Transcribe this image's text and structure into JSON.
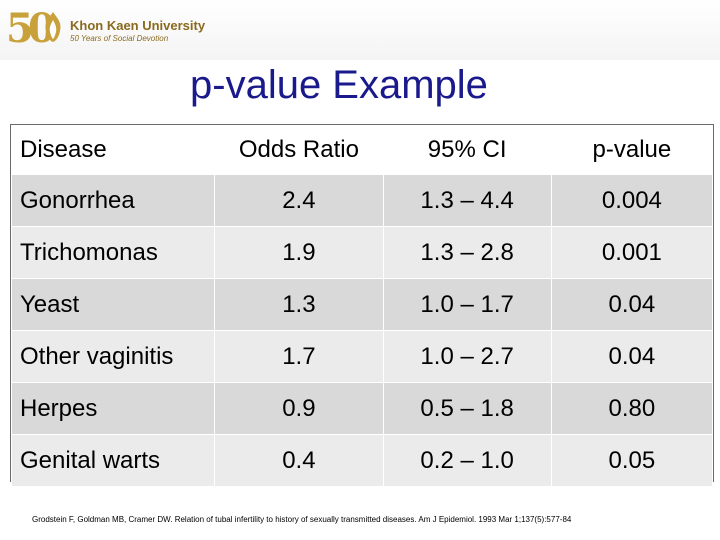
{
  "header": {
    "logo_fifty": "50",
    "logo_name": "Khon Kaen University",
    "logo_tagline": "50 Years of Social Devotion",
    "accent_color": "#c9a13b"
  },
  "slide": {
    "title": "p-value Example",
    "title_color": "#1a1a8c"
  },
  "table": {
    "headers": [
      "Disease",
      "Odds Ratio",
      "95% CI",
      "p-value"
    ],
    "rows": [
      [
        "Gonorrhea",
        "2.4",
        "1.3 – 4.4",
        "0.004"
      ],
      [
        "Trichomonas",
        "1.9",
        "1.3 – 2.8",
        "0.001"
      ],
      [
        "Yeast",
        "1.3",
        "1.0 – 1.7",
        "0.04"
      ],
      [
        "Other vaginitis",
        "1.7",
        "1.0 – 2.7",
        "0.04"
      ],
      [
        "Herpes",
        "0.9",
        "0.5 – 1.8",
        "0.80"
      ],
      [
        "Genital warts",
        "0.4",
        "0.2 – 1.0",
        "0.05"
      ]
    ]
  },
  "footer": {
    "citation": "Grodstein F, Goldman MB, Cramer DW. Relation of tubal infertility to history of sexually transmitted diseases. Am J Epidemiol. 1993 Mar 1;137(5):577-84"
  }
}
